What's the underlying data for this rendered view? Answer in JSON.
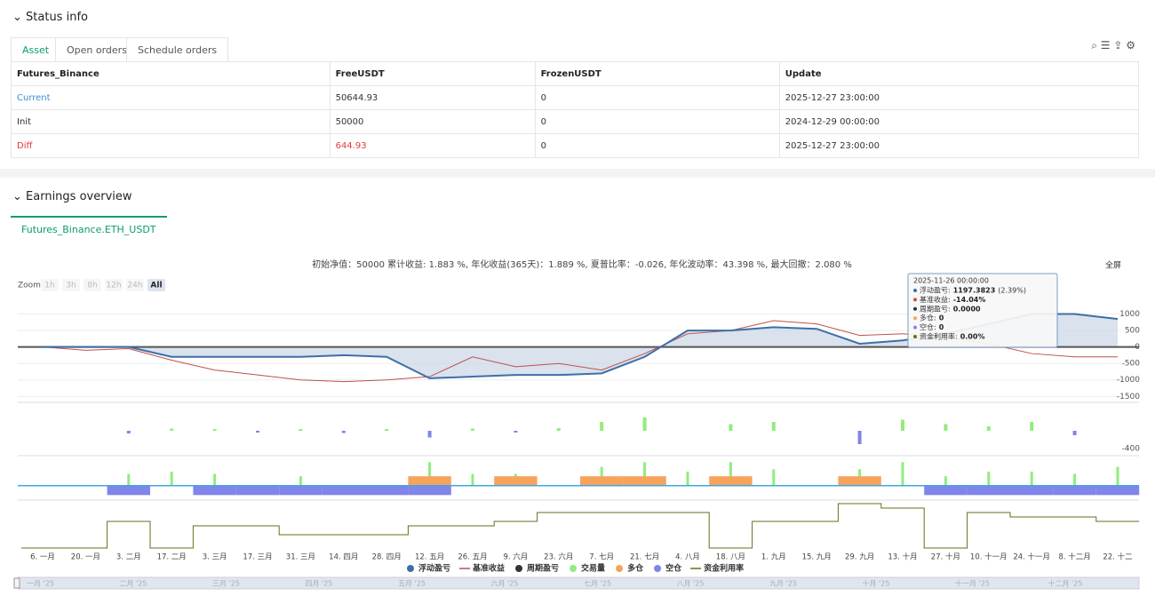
{
  "status_info": {
    "title": "Status info",
    "tabs": [
      "Asset",
      "Open orders",
      "Schedule orders"
    ],
    "table": {
      "header": [
        "Futures_Binance",
        "FreeUSDT",
        "FrozenUSDT",
        "Update"
      ],
      "rows": [
        [
          "Current",
          "50644.93",
          "0",
          "2025-12-27 23:00:00"
        ],
        [
          "Init",
          "50000",
          "0",
          "2024-12-29 00:00:00"
        ],
        [
          "Diff",
          "644.93",
          "0",
          "2025-12-27 23:00:00"
        ]
      ]
    }
  },
  "earnings_overview": {
    "title": "Earnings overview",
    "tab": "Futures_Binance.ETH_USDT",
    "fullscreen": "全屏",
    "zoom": {
      "label": "Zoom",
      "buttons": [
        "1h",
        "3h",
        "8h",
        "12h",
        "24h",
        "All"
      ]
    },
    "tooltip": {
      "time": "2025-11-26 00:00:00",
      "items": [
        {
          "label": "浮动盈亏:",
          "value": "1197.3823",
          "extra": "(2.39%)",
          "color": "#3d6fa8"
        },
        {
          "label": "基准收益:",
          "value": "-14.04%",
          "color": "#c0504d"
        },
        {
          "label": "周期盈亏:",
          "value": "0.0000",
          "color": "#333333"
        },
        {
          "label": "多仓:",
          "value": "0",
          "color": "#f7a35c"
        },
        {
          "label": "空仓:",
          "value": "0",
          "color": "#8085e9"
        },
        {
          "label": "资金利用率:",
          "value": "0.00%",
          "color": "#6b6b1e"
        }
      ]
    },
    "navigator": [
      "一月 '25",
      "二月 '25",
      "三月 '25",
      "四月 '25",
      "五月 '25",
      "六月 '25",
      "七月 '25",
      "八月 '25",
      "九月 '25",
      "十月 '25",
      "十一月 '25",
      "十二月 '25"
    ]
  },
  "chart_data": [
    {
      "type": "line",
      "subtitle": "初始净值：50000 累计收益: 1.883 %, 年化收益(365天)：1.889 %, 夏普比率：-0.026, 年化波动率：43.398 %, 最大回撤：2.080 %",
      "x": [
        "6. 一月",
        "20. 一月",
        "3. 二月",
        "17. 二月",
        "3. 三月",
        "17. 三月",
        "31. 三月",
        "14. 四月",
        "28. 四月",
        "12. 五月",
        "26. 五月",
        "9. 六月",
        "23. 六月",
        "7. 七月",
        "21. 七月",
        "4. 八月",
        "18. 八月",
        "1. 九月",
        "15. 九月",
        "29. 九月",
        "13. 十月",
        "27. 十月",
        "10. 十一月",
        "24. 十一月",
        "8. 十二月",
        "22. 十二"
      ],
      "series": [
        {
          "name": "浮动盈亏",
          "color": "#3d6fa8",
          "values": [
            0,
            0,
            0,
            -300,
            -300,
            -300,
            -300,
            -250,
            -300,
            -950,
            -900,
            -850,
            -850,
            -800,
            -300,
            500,
            500,
            600,
            550,
            100,
            200,
            400,
            700,
            1000,
            1000,
            850
          ]
        },
        {
          "name": "基准收益",
          "color": "#c0504d",
          "values": [
            0,
            -100,
            -50,
            -400,
            -700,
            -850,
            -1000,
            -1050,
            -1000,
            -900,
            -300,
            -600,
            -500,
            -700,
            -200,
            400,
            500,
            800,
            700,
            350,
            400,
            300,
            100,
            -200,
            -300,
            -300
          ]
        }
      ],
      "ylim": [
        -1600,
        1500
      ],
      "yticks": [
        1000,
        500,
        0,
        -500,
        -1000,
        -1500
      ]
    },
    {
      "type": "bar",
      "series": [
        {
          "name": "周期盈亏",
          "color": "#333333",
          "positive_color": "#90ed7d",
          "negative_color": "#8085e9",
          "values": [
            0,
            0,
            -60,
            50,
            40,
            -40,
            40,
            -50,
            40,
            -150,
            50,
            -40,
            60,
            200,
            300,
            0,
            150,
            200,
            0,
            -300,
            250,
            150,
            100,
            200,
            -100,
            0
          ]
        }
      ],
      "ylim": [
        -600,
        600
      ],
      "yticks": [
        -400
      ]
    },
    {
      "type": "position",
      "series": [
        {
          "name": "交易量",
          "color": "#90ed7d",
          "values": [
            0,
            0,
            0.5,
            0.6,
            0.5,
            0,
            0.4,
            0,
            0,
            1,
            0.5,
            0.5,
            0,
            0.8,
            1,
            0.6,
            1,
            0.7,
            0,
            0.7,
            1,
            0.4,
            0.6,
            0.6,
            0.5,
            0.8
          ]
        },
        {
          "name": "多仓",
          "color": "#f7a35c",
          "values": [
            0,
            0,
            0,
            0,
            0,
            0,
            0,
            0,
            0,
            0.4,
            0,
            0.4,
            0,
            0.4,
            0.4,
            0,
            0.4,
            0,
            0,
            0.4,
            0,
            0,
            0,
            0,
            0,
            0
          ]
        },
        {
          "name": "空仓",
          "color": "#8085e9",
          "values": [
            0,
            0,
            -0.4,
            0,
            -0.4,
            -0.4,
            -0.4,
            -0.4,
            -0.4,
            -0.4,
            0,
            0,
            0,
            0,
            0,
            0,
            0,
            0,
            0,
            0,
            0,
            -0.4,
            -0.4,
            -0.4,
            -0.4,
            -0.4
          ]
        }
      ],
      "ylim": [
        -0.5,
        1.2
      ]
    },
    {
      "type": "step",
      "series": [
        {
          "name": "资金利用率",
          "color": "#6b6b1e",
          "values": [
            0,
            0,
            0.6,
            0,
            0.5,
            0.5,
            0.3,
            0.3,
            0.3,
            0.5,
            0.5,
            0.6,
            0.8,
            0.8,
            0.8,
            0.8,
            0,
            0.6,
            0.6,
            1,
            0.9,
            0,
            0.8,
            0.7,
            0.7,
            0.6
          ]
        }
      ],
      "ylim": [
        0,
        1
      ]
    }
  ]
}
